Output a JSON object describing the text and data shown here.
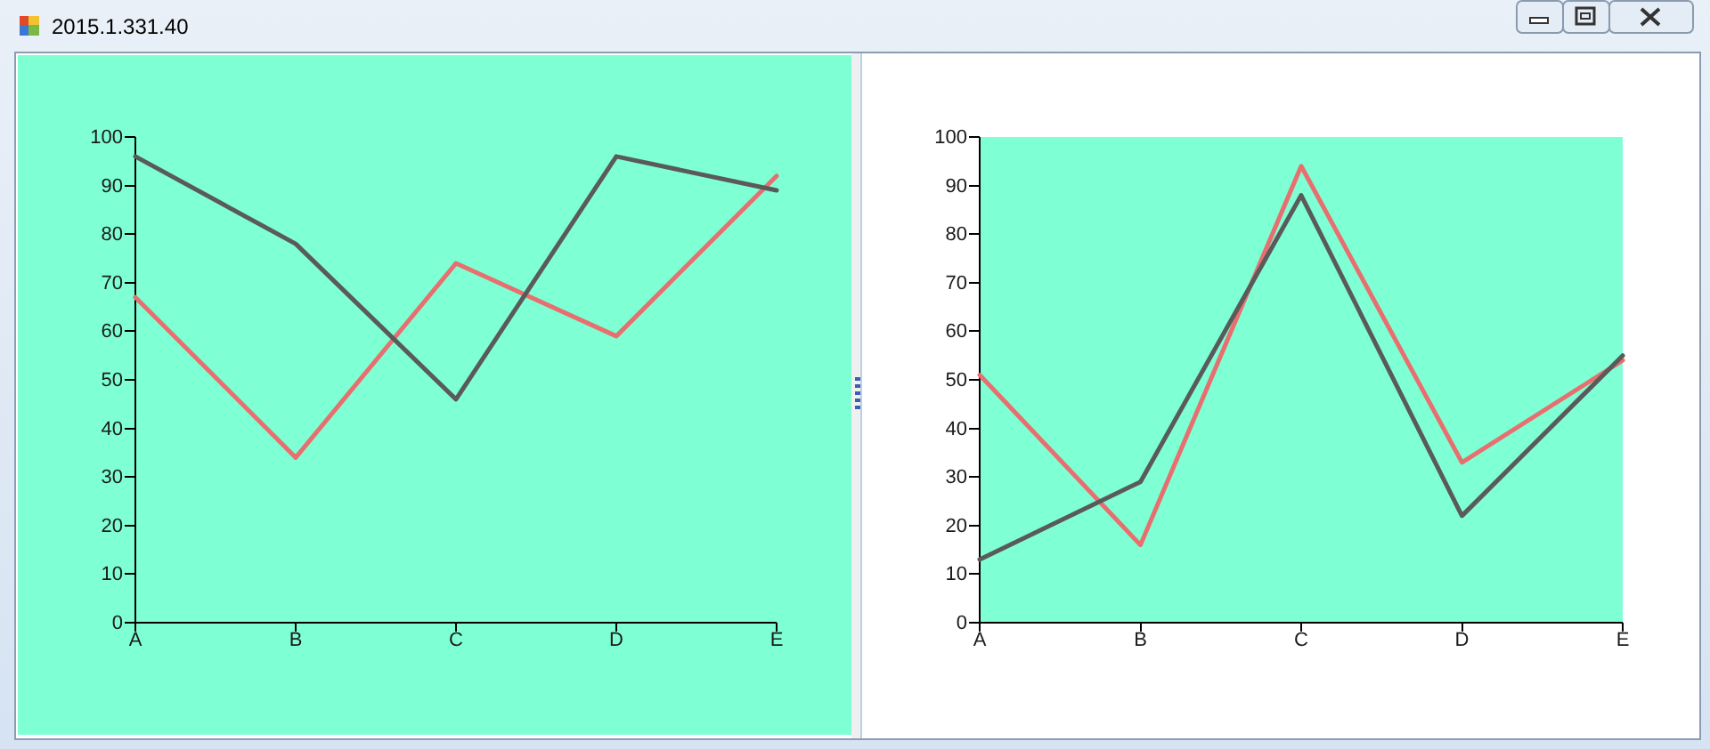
{
  "chart_data": [
    {
      "type": "line",
      "annotations": [
        "2015.1.331.40"
      ],
      "categories": [
        "A",
        "B",
        "C",
        "D",
        "E"
      ],
      "series": [
        {
          "color": "#e86f6f",
          "values": [
            67,
            34,
            74,
            59,
            92
          ]
        },
        {
          "color": "#5a5a5a",
          "values": [
            96,
            78,
            46,
            96,
            89
          ]
        }
      ],
      "ylim": [
        0,
        100
      ],
      "yticks": [
        0,
        10,
        20,
        30,
        40,
        50,
        60,
        70,
        80,
        90,
        100
      ]
    },
    {
      "type": "line",
      "categories": [
        "A",
        "B",
        "C",
        "D",
        "E"
      ],
      "series": [
        {
          "color": "#e86f6f",
          "values": [
            51,
            16,
            94,
            33,
            54
          ]
        },
        {
          "color": "#5a5a5a",
          "values": [
            13,
            29,
            88,
            22,
            55
          ]
        }
      ],
      "ylim": [
        0,
        100
      ],
      "yticks": [
        0,
        10,
        20,
        30,
        40,
        50,
        60,
        70,
        80,
        90,
        100
      ]
    }
  ]
}
